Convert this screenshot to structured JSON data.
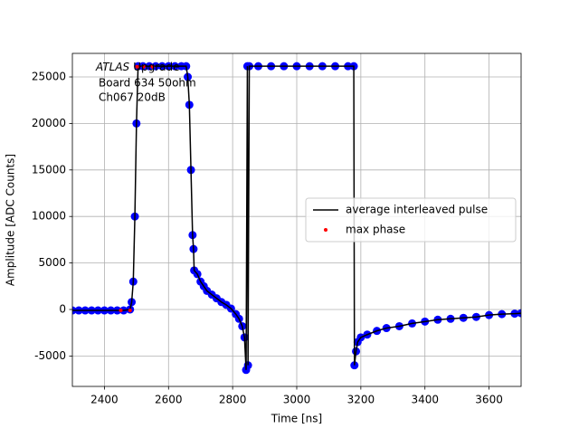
{
  "chart_data": {
    "type": "line",
    "xlabel": "Time [ns]",
    "ylabel": "Amplitude [ADC Counts]",
    "atlas_label": "ATLAS",
    "atlas_sublabel": "Upgrade",
    "annotations": [
      "Board 634 50ohm",
      "Ch067 20dB"
    ],
    "xlim": [
      2300,
      3700
    ],
    "ylim": [
      -8270,
      27530
    ],
    "xticks": [
      2400,
      2600,
      2800,
      3000,
      3200,
      3400,
      3600
    ],
    "yticks": [
      -5000,
      0,
      5000,
      10000,
      15000,
      20000,
      25000
    ],
    "grid": true,
    "legend": "center right",
    "series": [
      {
        "name": "average interleaved pulse",
        "color": "#000000",
        "marker_color": "#0000ff",
        "mode": "line",
        "x": [
          2300,
          2320,
          2340,
          2360,
          2380,
          2400,
          2420,
          2440,
          2460,
          2480,
          2485,
          2490,
          2495,
          2500,
          2505,
          2520,
          2540,
          2560,
          2580,
          2600,
          2620,
          2640,
          2655,
          2660,
          2665,
          2670,
          2675,
          2678,
          2680,
          2690,
          2700,
          2710,
          2720,
          2735,
          2750,
          2765,
          2780,
          2795,
          2810,
          2820,
          2830,
          2837,
          2842,
          2846,
          2848,
          2852,
          2880,
          2920,
          2960,
          3000,
          3040,
          3080,
          3120,
          3160,
          3178,
          3180,
          3185,
          3190,
          3200,
          3220,
          3250,
          3280,
          3320,
          3360,
          3400,
          3440,
          3480,
          3520,
          3560,
          3600,
          3640,
          3680,
          3700
        ],
        "values": [
          -100,
          -100,
          -100,
          -100,
          -100,
          -100,
          -100,
          -100,
          -100,
          0,
          800,
          3000,
          10000,
          20000,
          26150,
          26150,
          26150,
          26150,
          26150,
          26150,
          26150,
          26150,
          26150,
          25000,
          22000,
          15000,
          8000,
          6500,
          4200,
          3800,
          3000,
          2500,
          2000,
          1600,
          1200,
          800,
          500,
          100,
          -500,
          -1000,
          -1800,
          -3000,
          -6500,
          26150,
          -6000,
          26150,
          26150,
          26150,
          26150,
          26150,
          26150,
          26150,
          26150,
          26150,
          26150,
          -6000,
          -4500,
          -3500,
          -3000,
          -2700,
          -2300,
          -2000,
          -1800,
          -1500,
          -1300,
          -1100,
          -1000,
          -900,
          -800,
          -600,
          -500,
          -450,
          -400
        ]
      },
      {
        "name": "max phase",
        "color": "#ff0000",
        "mode": "markers",
        "x": [
          2451,
          2480,
          2502,
          2522,
          2550
        ],
        "values": [
          -100,
          -100,
          26100,
          26100,
          26100
        ]
      }
    ]
  }
}
